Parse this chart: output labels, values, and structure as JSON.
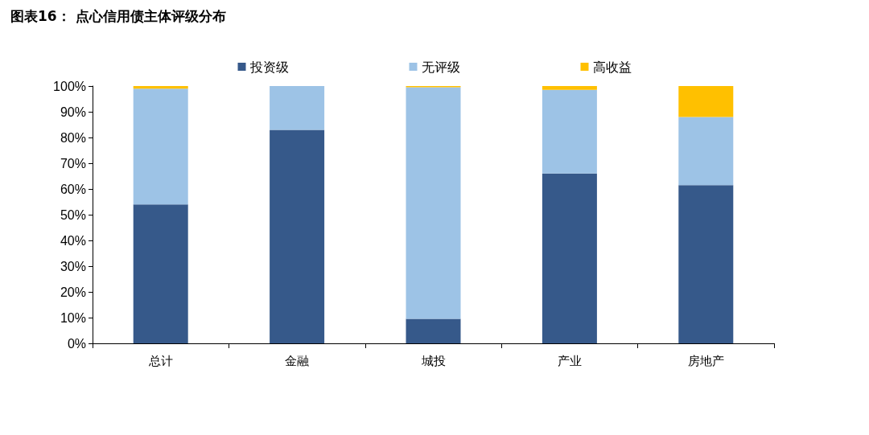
{
  "chart_data": {
    "type": "bar",
    "title": "图表16： 点心信用债主体评级分布",
    "stacked": true,
    "categories": [
      "总计",
      "金融",
      "城投",
      "产业",
      "房地产"
    ],
    "series": [
      {
        "name": "投资级",
        "color": "#36598a",
        "values": [
          54,
          83,
          9.5,
          66,
          61.5
        ]
      },
      {
        "name": "无评级",
        "color": "#9dc3e6",
        "values": [
          45,
          17,
          90,
          32.5,
          26.5
        ]
      },
      {
        "name": "高收益",
        "color": "#ffc000",
        "values": [
          1,
          0,
          0.5,
          1.5,
          12
        ]
      }
    ],
    "ylim": [
      0,
      100
    ],
    "yticks": [
      {
        "value": 0,
        "label": "0%"
      },
      {
        "value": 10,
        "label": "10%"
      },
      {
        "value": 20,
        "label": "20%"
      },
      {
        "value": 30,
        "label": "30%"
      },
      {
        "value": 40,
        "label": "40%"
      },
      {
        "value": 50,
        "label": "50%"
      },
      {
        "value": 60,
        "label": "60%"
      },
      {
        "value": 70,
        "label": "70%"
      },
      {
        "value": 80,
        "label": "80%"
      },
      {
        "value": 90,
        "label": "90%"
      },
      {
        "value": 100,
        "label": "100%"
      }
    ],
    "grid": false,
    "legend": "top"
  }
}
